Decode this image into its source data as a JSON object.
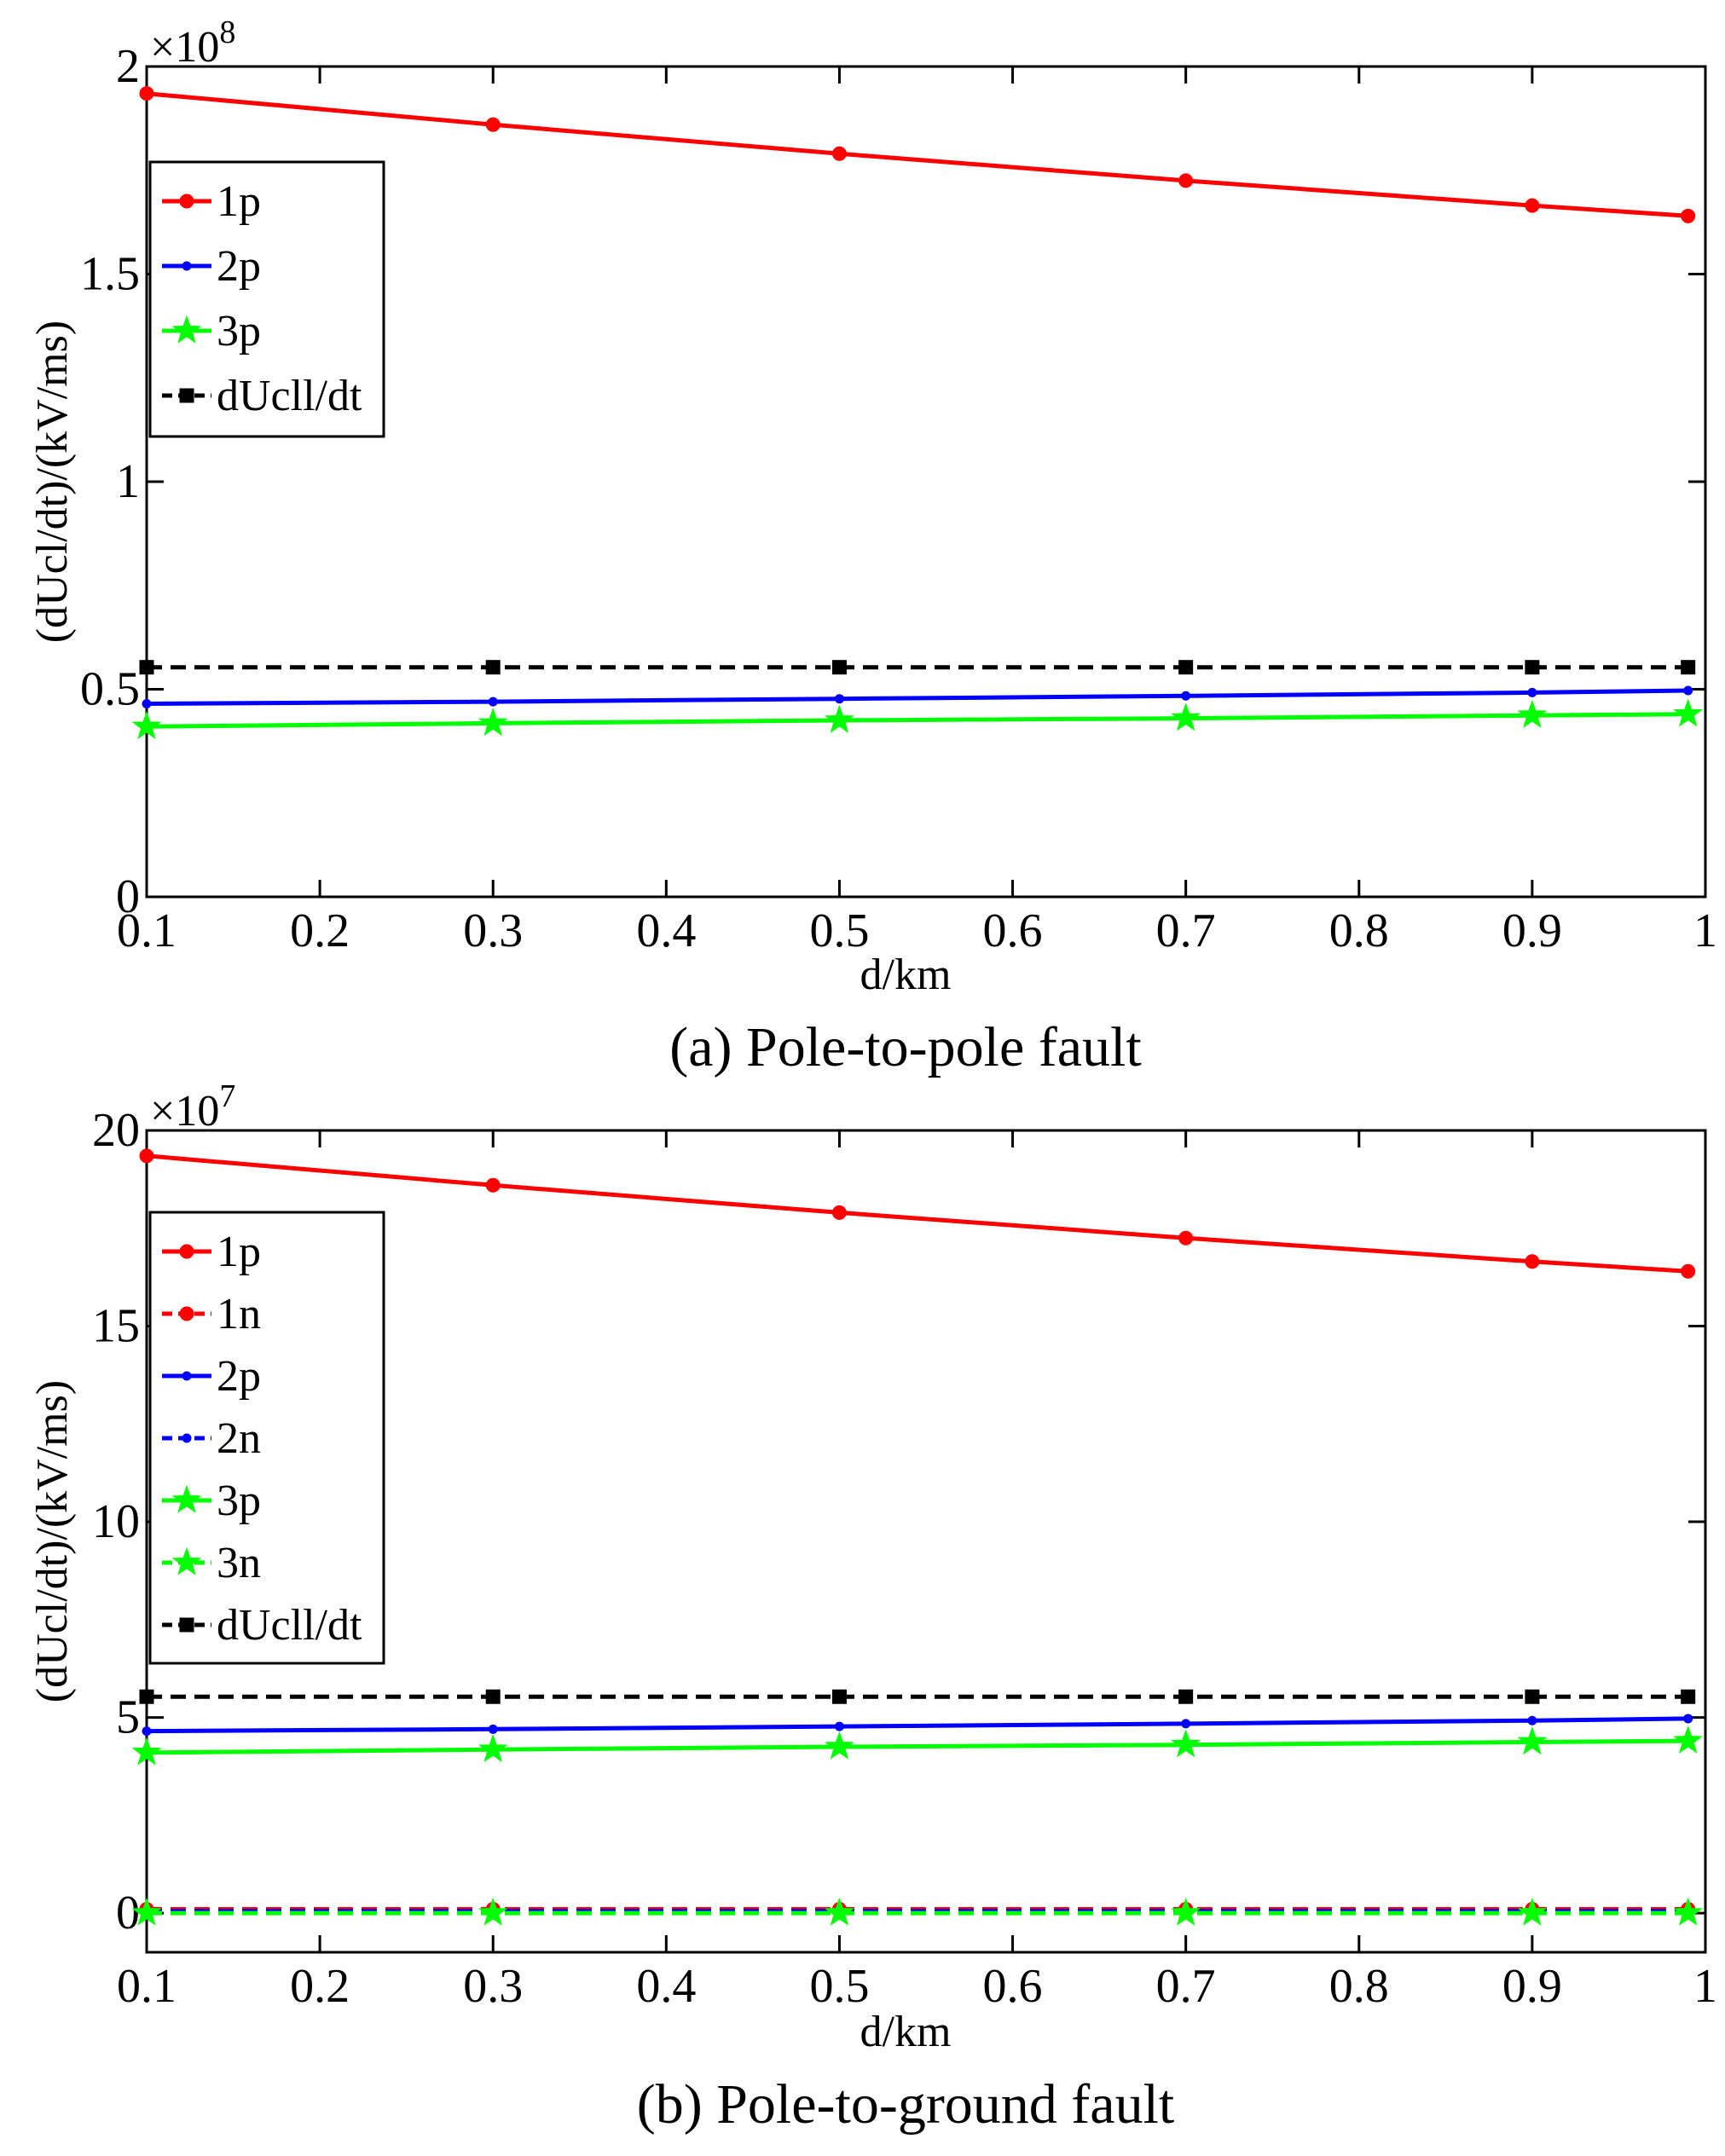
{
  "chart_data": [
    {
      "id": "a",
      "type": "line",
      "caption": "(a)  Pole-to-pole fault",
      "title": "",
      "xlabel": "d/km",
      "ylabel": "(dUcl/dt)/(kV/ms)",
      "exponent_label": "×10",
      "exponent_power": "8",
      "xlim": [
        0.1,
        1
      ],
      "ylim": [
        0,
        2
      ],
      "xticks": [
        0.1,
        0.2,
        0.3,
        0.4,
        0.5,
        0.6,
        0.7,
        0.8,
        0.9,
        1
      ],
      "xtick_labels": [
        "0.1",
        "0.2",
        "0.3",
        "0.4",
        "0.5",
        "0.6",
        "0.7",
        "0.8",
        "0.9",
        "1"
      ],
      "yticks": [
        0,
        0.5,
        1,
        1.5,
        2
      ],
      "ytick_labels": [
        "0",
        "0.5",
        "1",
        "1.5",
        "2"
      ],
      "x": [
        0.1,
        0.3,
        0.5,
        0.7,
        0.9,
        0.99
      ],
      "legend_position": "top-left",
      "grid": false,
      "series": [
        {
          "name": "1p",
          "color": "#ff0000",
          "marker": "circle",
          "dash": false,
          "values": [
            1.935,
            1.86,
            1.79,
            1.725,
            1.665,
            1.64
          ]
        },
        {
          "name": "2p",
          "color": "#0000ff",
          "marker": "dot",
          "dash": false,
          "values": [
            0.465,
            0.47,
            0.477,
            0.484,
            0.492,
            0.497
          ]
        },
        {
          "name": "3p",
          "color": "#00ff00",
          "marker": "star",
          "dash": false,
          "values": [
            0.41,
            0.418,
            0.425,
            0.43,
            0.437,
            0.44
          ]
        },
        {
          "name": "dUcll/dt",
          "color": "#000000",
          "marker": "square",
          "dash": true,
          "values": [
            0.553,
            0.553,
            0.553,
            0.553,
            0.553,
            0.553
          ]
        }
      ]
    },
    {
      "id": "b",
      "type": "line",
      "caption": "(b)  Pole-to-ground fault",
      "title": "",
      "xlabel": "d/km",
      "ylabel": "(dUcl/dt)/(kV/ms)",
      "exponent_label": "×10",
      "exponent_power": "7",
      "xlim": [
        0.1,
        1
      ],
      "ylim": [
        -1,
        20
      ],
      "xticks": [
        0.1,
        0.2,
        0.3,
        0.4,
        0.5,
        0.6,
        0.7,
        0.8,
        0.9,
        1
      ],
      "xtick_labels": [
        "0.1",
        "0.2",
        "0.3",
        "0.4",
        "0.5",
        "0.6",
        "0.7",
        "0.8",
        "0.9",
        "1"
      ],
      "yticks": [
        0,
        5,
        10,
        15,
        20
      ],
      "ytick_labels": [
        "0",
        "5",
        "10",
        "15",
        "20"
      ],
      "x": [
        0.1,
        0.3,
        0.5,
        0.7,
        0.9,
        0.99
      ],
      "legend_position": "top-left",
      "grid": false,
      "series": [
        {
          "name": "1p",
          "color": "#ff0000",
          "marker": "circle",
          "dash": false,
          "values": [
            19.35,
            18.6,
            17.9,
            17.25,
            16.65,
            16.4
          ]
        },
        {
          "name": "1n",
          "color": "#ff0000",
          "marker": "circle",
          "dash": true,
          "values": [
            0.1,
            0.1,
            0.1,
            0.1,
            0.1,
            0.1
          ]
        },
        {
          "name": "2p",
          "color": "#0000ff",
          "marker": "dot",
          "dash": false,
          "values": [
            4.65,
            4.7,
            4.77,
            4.84,
            4.92,
            4.97
          ]
        },
        {
          "name": "2n",
          "color": "#0000ff",
          "marker": "dot",
          "dash": true,
          "values": [
            0.05,
            0.05,
            0.05,
            0.05,
            0.05,
            0.05
          ]
        },
        {
          "name": "3p",
          "color": "#00ff00",
          "marker": "star",
          "dash": false,
          "values": [
            4.1,
            4.18,
            4.25,
            4.3,
            4.37,
            4.4
          ]
        },
        {
          "name": "3n",
          "color": "#00ff00",
          "marker": "star",
          "dash": true,
          "values": [
            0.0,
            0.0,
            0.0,
            0.0,
            0.0,
            0.0
          ]
        },
        {
          "name": "dUcll/dt",
          "color": "#000000",
          "marker": "square",
          "dash": true,
          "values": [
            5.53,
            5.53,
            5.53,
            5.53,
            5.53,
            5.53
          ]
        }
      ]
    }
  ]
}
